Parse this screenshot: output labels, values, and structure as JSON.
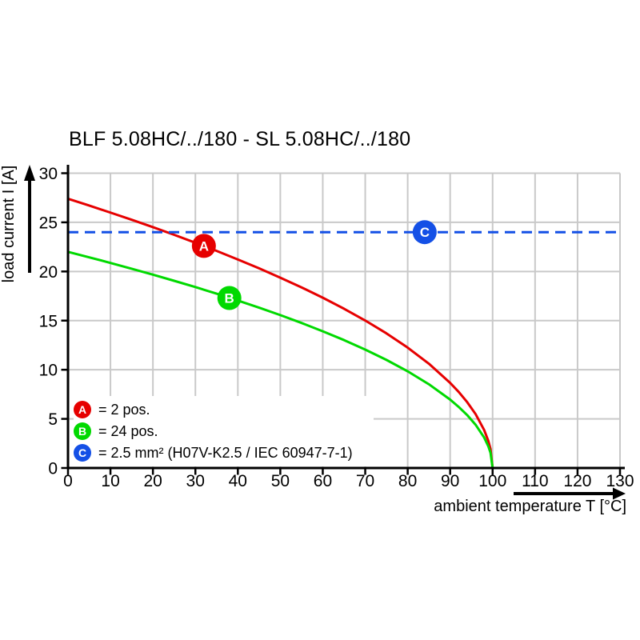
{
  "chart_data": {
    "type": "line",
    "title": "BLF 5.08HC/../180 - SL 5.08HC/../180",
    "xlabel": "ambient temperature T [°C]",
    "ylabel": "load current I [A]",
    "xlim": [
      0,
      130
    ],
    "ylim": [
      0,
      30
    ],
    "xticks": [
      0,
      10,
      20,
      30,
      40,
      50,
      60,
      70,
      80,
      90,
      100,
      110,
      120,
      130
    ],
    "yticks": [
      0,
      5,
      10,
      15,
      20,
      25,
      30
    ],
    "grid": true,
    "grid_color": "#c9c9c9",
    "axis_color": "#000000",
    "legend_position": "bottom-left-inside",
    "series": [
      {
        "name": "A",
        "label": "= 2 pos.",
        "color": "#e60000",
        "style": "solid",
        "x": [
          0,
          5,
          10,
          15,
          20,
          25,
          30,
          35,
          40,
          45,
          50,
          55,
          60,
          65,
          70,
          75,
          80,
          85,
          90,
          92,
          94,
          96,
          98,
          99,
          99.5,
          100
        ],
        "y": [
          27.4,
          26.71,
          25.99,
          25.26,
          24.51,
          23.73,
          22.92,
          22.09,
          21.22,
          20.32,
          19.37,
          18.38,
          17.33,
          16.21,
          15.01,
          13.7,
          12.25,
          10.61,
          8.66,
          7.75,
          6.71,
          5.48,
          3.87,
          2.74,
          1.94,
          0
        ],
        "marker": {
          "letter": "A",
          "t": 32,
          "i": 22.6
        }
      },
      {
        "name": "B",
        "label": "= 24 pos.",
        "color": "#00d900",
        "style": "solid",
        "x": [
          0,
          5,
          10,
          15,
          20,
          25,
          30,
          35,
          40,
          45,
          50,
          55,
          60,
          65,
          70,
          75,
          80,
          85,
          90,
          92,
          94,
          96,
          98,
          99,
          99.5,
          100
        ],
        "y": [
          22,
          21.44,
          20.87,
          20.28,
          19.68,
          19.05,
          18.41,
          17.74,
          17.04,
          16.32,
          15.56,
          14.76,
          13.91,
          13.02,
          12.05,
          11,
          9.84,
          8.52,
          6.96,
          6.22,
          5.39,
          4.4,
          3.11,
          2.2,
          1.56,
          0
        ],
        "marker": {
          "letter": "B",
          "t": 38,
          "i": 17.3
        }
      },
      {
        "name": "C",
        "label": "= 2.5 mm² (H07V-K2.5 / IEC 60947-7-1)",
        "color": "#1450e6",
        "style": "dashed",
        "x": [
          0,
          130
        ],
        "y": [
          24,
          24
        ],
        "marker": {
          "letter": "C",
          "t": 84,
          "i": 24
        }
      }
    ]
  }
}
